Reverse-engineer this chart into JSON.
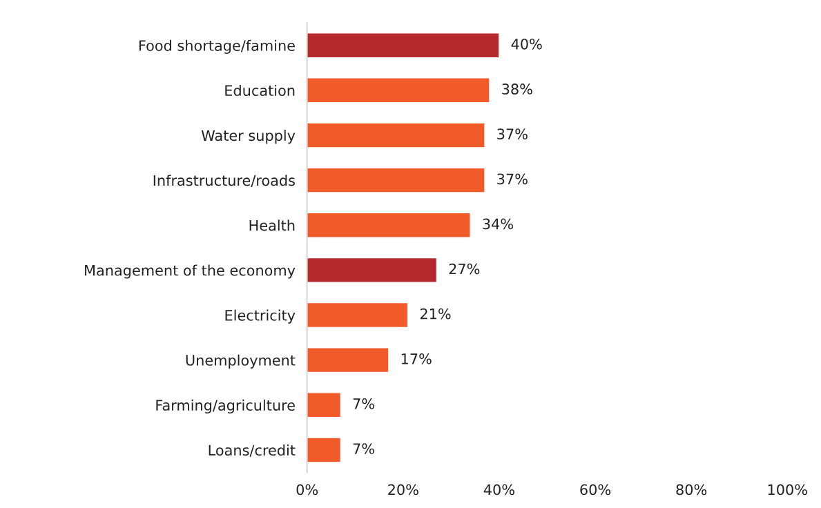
{
  "chart_data": {
    "type": "bar",
    "orientation": "horizontal",
    "categories": [
      "Food shortage/famine",
      "Education",
      "Water supply",
      "Infrastructure/roads",
      "Health",
      "Management of the economy",
      "Electricity",
      "Unemployment",
      "Farming/agriculture",
      "Loans/credit"
    ],
    "values": [
      40,
      38,
      37,
      37,
      34,
      27,
      21,
      17,
      7,
      7
    ],
    "colors": [
      "#b5282e",
      "#f15a29",
      "#f15a29",
      "#f15a29",
      "#f15a29",
      "#b5282e",
      "#f15a29",
      "#f15a29",
      "#f15a29",
      "#f15a29"
    ],
    "value_labels": [
      "40%",
      "38%",
      "37%",
      "37%",
      "34%",
      "27%",
      "21%",
      "17%",
      "7%",
      "7%"
    ],
    "xlim": [
      0,
      100
    ],
    "xticks": [
      {
        "value": 0,
        "label": "0%"
      },
      {
        "value": 20,
        "label": "20%"
      },
      {
        "value": 40,
        "label": "40%"
      },
      {
        "value": 60,
        "label": "60%"
      },
      {
        "value": 80,
        "label": "80%"
      },
      {
        "value": 100,
        "label": "100%"
      }
    ],
    "grid": false,
    "legend": false
  }
}
